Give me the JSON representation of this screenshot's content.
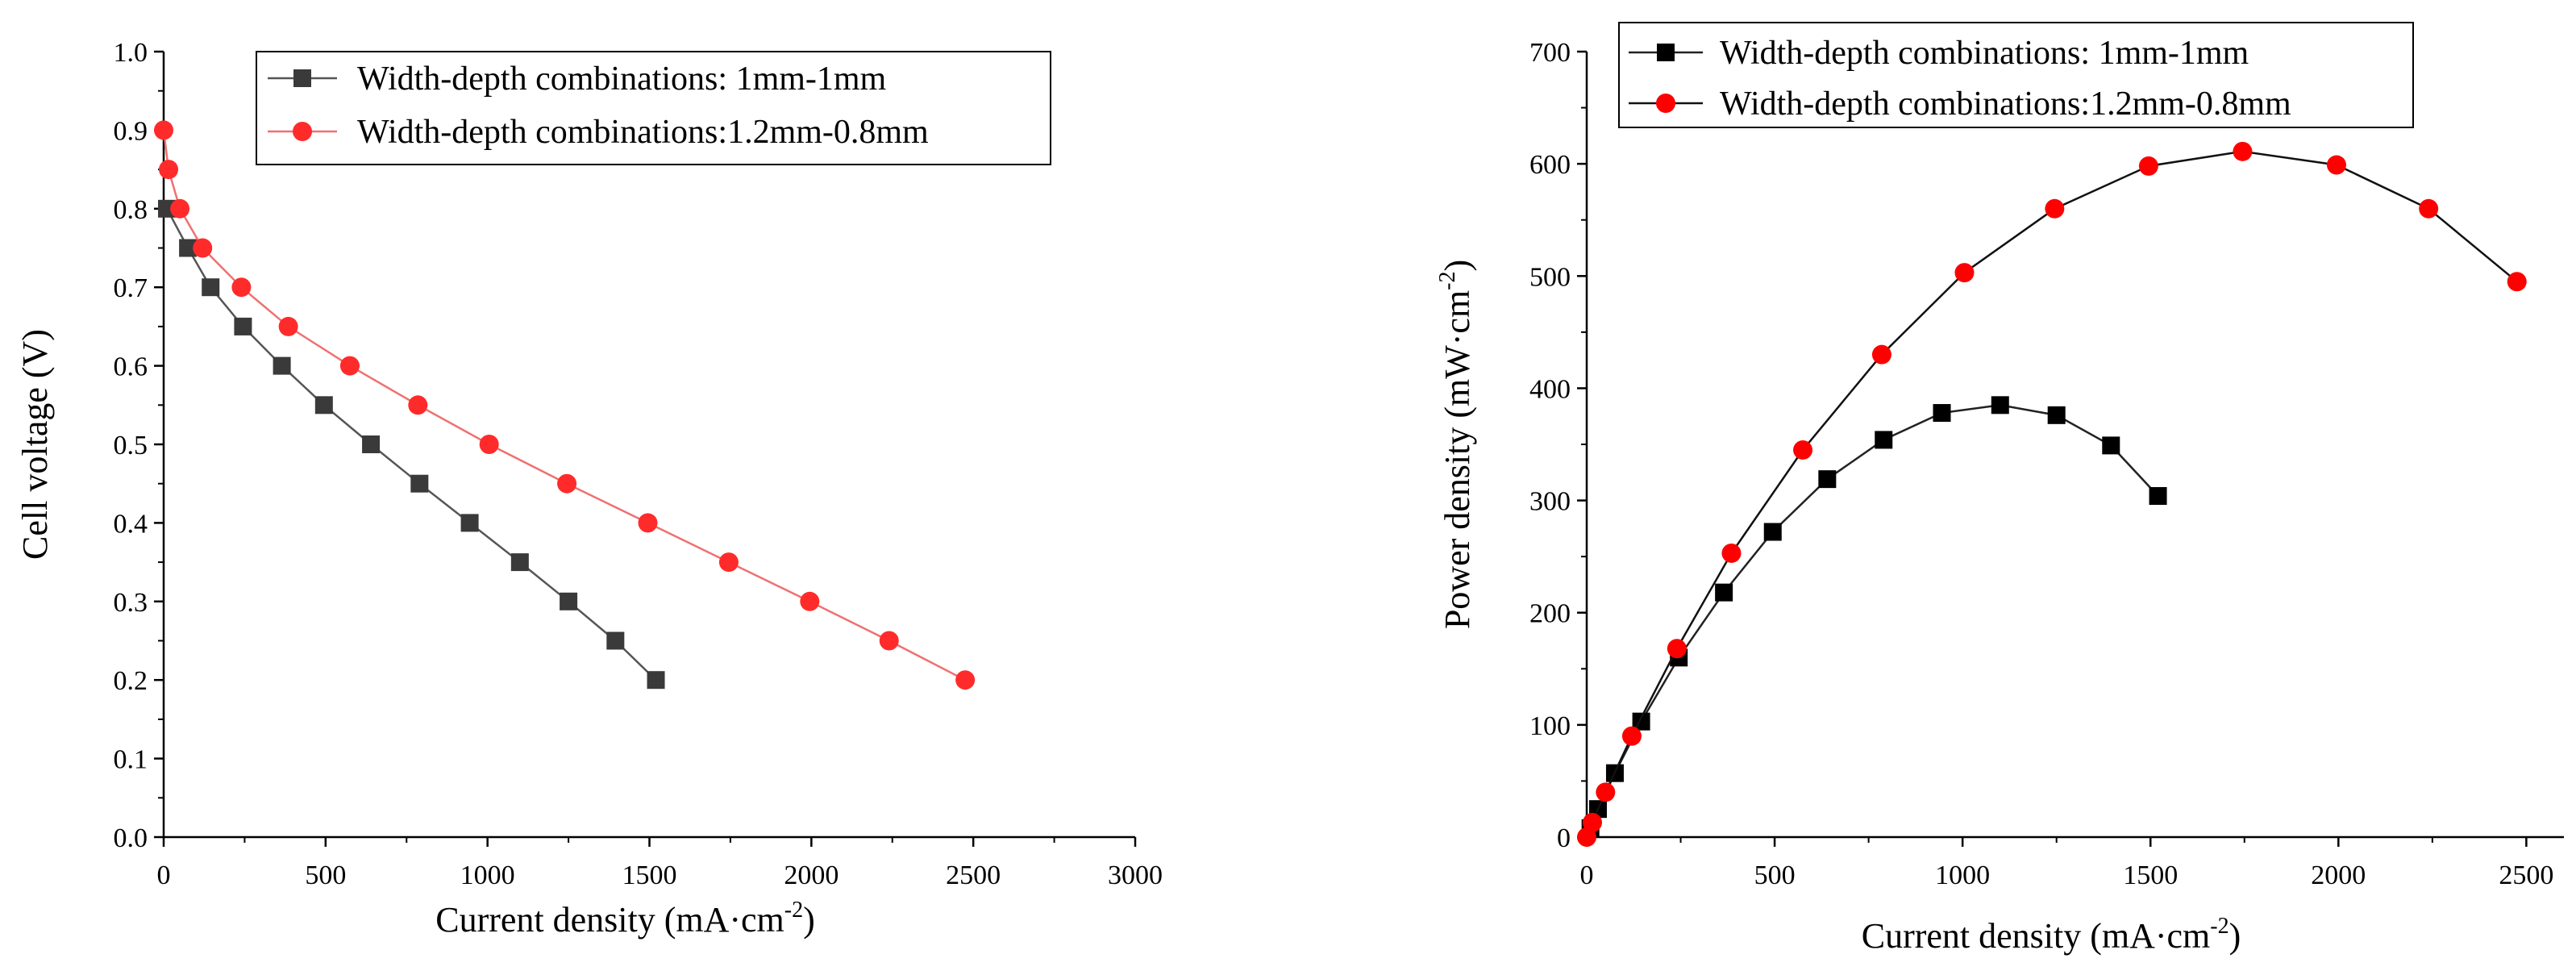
{
  "chart_data": [
    {
      "type": "line",
      "xlabel": "Current density (mA·cm",
      "xlabel_sup": "-2",
      "xlabel_tail": ")",
      "ylabel": "Cell voltage (V)",
      "ylabel_sup": "",
      "ylabel_tail": "",
      "xlim": [
        0,
        3000
      ],
      "ylim": [
        0,
        1.0
      ],
      "xticks": [
        0,
        500,
        1000,
        1500,
        2000,
        2500,
        3000
      ],
      "yticks": [
        0.0,
        0.1,
        0.2,
        0.3,
        0.4,
        0.5,
        0.6,
        0.7,
        0.8,
        0.9,
        1.0
      ],
      "ytick_labels": [
        "0.0",
        "0.1",
        "0.2",
        "0.3",
        "0.4",
        "0.5",
        "0.6",
        "0.7",
        "0.8",
        "0.9",
        "1.0"
      ],
      "legend_position": "top-right",
      "series": [
        {
          "name": "Width-depth combinations: 1mm-1mm",
          "marker": "square",
          "color": "#3a3a3a",
          "line_color": "#555555",
          "x": [
            10,
            75,
            145,
            245,
            365,
            495,
            640,
            790,
            945,
            1100,
            1250,
            1395,
            1520
          ],
          "y": [
            0.8,
            0.75,
            0.7,
            0.65,
            0.6,
            0.55,
            0.5,
            0.45,
            0.4,
            0.35,
            0.3,
            0.25,
            0.2
          ]
        },
        {
          "name": "Width-depth combinations:1.2mm-0.8mm",
          "marker": "circle",
          "color": "#ff2b2b",
          "line_color": "#f07070",
          "x": [
            0,
            15,
            50,
            120,
            240,
            385,
            575,
            785,
            1005,
            1245,
            1495,
            1745,
            1995,
            2240,
            2475
          ],
          "y": [
            0.9,
            0.85,
            0.8,
            0.75,
            0.7,
            0.65,
            0.6,
            0.55,
            0.5,
            0.45,
            0.4,
            0.35,
            0.3,
            0.25,
            0.2
          ]
        }
      ]
    },
    {
      "type": "line",
      "xlabel": "Current density (mA·cm",
      "xlabel_sup": "-2",
      "xlabel_tail": ")",
      "ylabel": "Power density (mW·cm",
      "ylabel_sup": "-2",
      "ylabel_tail": ")",
      "xlim": [
        0,
        2600
      ],
      "ylim": [
        0,
        700
      ],
      "xticks": [
        0,
        500,
        1000,
        1500,
        2000,
        2500
      ],
      "yticks": [
        0,
        100,
        200,
        300,
        400,
        500,
        600,
        700
      ],
      "ytick_labels": [
        "0",
        "100",
        "200",
        "300",
        "400",
        "500",
        "600",
        "700"
      ],
      "legend_position": "top-right",
      "series": [
        {
          "name": "Width-depth combinations: 1mm-1mm",
          "marker": "square",
          "color": "#000000",
          "line_color": "#222222",
          "x": [
            10,
            30,
            75,
            145,
            245,
            365,
            495,
            640,
            790,
            945,
            1100,
            1250,
            1395,
            1520
          ],
          "y": [
            8,
            25,
            57,
            103,
            160,
            218,
            272,
            319,
            354,
            378,
            385,
            376,
            349,
            304
          ]
        },
        {
          "name": "Width-depth combinations:1.2mm-0.8mm",
          "marker": "circle",
          "color": "#ff0000",
          "line_color": "#111111",
          "x": [
            0,
            15,
            50,
            120,
            240,
            385,
            575,
            785,
            1005,
            1245,
            1495,
            1745,
            1995,
            2240,
            2475
          ],
          "y": [
            0,
            13,
            40,
            90,
            168,
            253,
            345,
            430,
            503,
            560,
            598,
            611,
            599,
            560,
            495
          ]
        }
      ]
    }
  ]
}
